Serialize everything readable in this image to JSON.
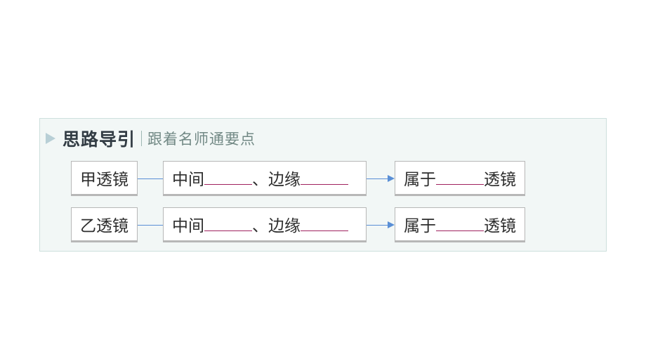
{
  "heading": {
    "title": "思路导引",
    "subtitle": "跟着名师通要点"
  },
  "rows": [
    {
      "label": "甲透镜",
      "middle_prefix": "中间",
      "middle_sep": "、边缘",
      "result_prefix": "属于",
      "result_suffix": "透镜"
    },
    {
      "label": "乙透镜",
      "middle_prefix": "中间",
      "middle_sep": "、边缘",
      "result_prefix": "属于",
      "result_suffix": "透镜"
    }
  ],
  "styles": {
    "panel_bg": "#f2f7f6",
    "panel_border": "#cde0dd",
    "triangle_color": "#b8cfd6",
    "title_color": "#323c44",
    "subtitle_color": "#728985",
    "box_bg": "#ffffff",
    "box_border": "#b7b7b7",
    "arrow_color": "#5a8fd6",
    "blank_underline_color": "#a0225f",
    "title_fontsize": 25,
    "subtitle_fontsize": 21,
    "box_fontsize": 23
  }
}
